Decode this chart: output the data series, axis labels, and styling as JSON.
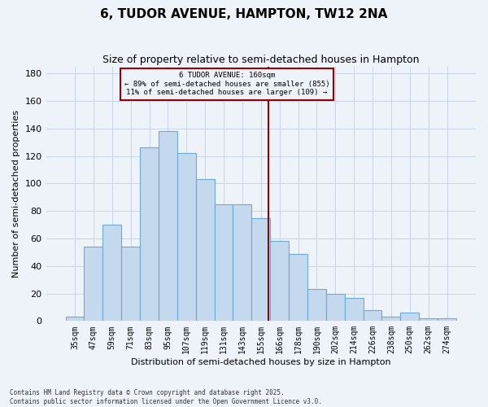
{
  "title": "6, TUDOR AVENUE, HAMPTON, TW12 2NA",
  "subtitle": "Size of property relative to semi-detached houses in Hampton",
  "xlabel": "Distribution of semi-detached houses by size in Hampton",
  "ylabel": "Number of semi-detached properties",
  "footnote1": "Contains HM Land Registry data © Crown copyright and database right 2025.",
  "footnote2": "Contains public sector information licensed under the Open Government Licence v3.0.",
  "ann_line0": "6 TUDOR AVENUE: 160sqm",
  "ann_line1": "← 89% of semi-detached houses are smaller (855)",
  "ann_line2": "11% of semi-detached houses are larger (109) →",
  "bar_labels": [
    "35sqm",
    "47sqm",
    "59sqm",
    "71sqm",
    "83sqm",
    "95sqm",
    "107sqm",
    "119sqm",
    "131sqm",
    "143sqm",
    "155sqm",
    "166sqm",
    "178sqm",
    "190sqm",
    "202sqm",
    "214sqm",
    "226sqm",
    "238sqm",
    "250sqm",
    "262sqm",
    "274sqm"
  ],
  "bar_values": [
    3,
    54,
    70,
    54,
    126,
    138,
    122,
    103,
    85,
    85,
    75,
    58,
    49,
    23,
    20,
    17,
    8,
    3,
    6,
    2,
    2
  ],
  "bin_starts": [
    29,
    41,
    53,
    65,
    77,
    89,
    101,
    113,
    125,
    137,
    149,
    161,
    173,
    185,
    197,
    209,
    221,
    233,
    245,
    257,
    269
  ],
  "bin_width": 12,
  "vline_x": 160,
  "bar_facecolor": "#c5d9ee",
  "bar_edgecolor": "#6aaad4",
  "vline_color": "#990000",
  "box_edgecolor": "#990000",
  "ylim_max": 185,
  "yticks": [
    0,
    20,
    40,
    60,
    80,
    100,
    120,
    140,
    160,
    180
  ],
  "bg_color": "#eef2f9",
  "grid_color": "#c8d4e8",
  "title_fontsize": 11,
  "subtitle_fontsize": 9,
  "axis_label_fontsize": 8,
  "tick_fontsize": 7,
  "ann_fontsize": 6.5,
  "footnote_fontsize": 5.5
}
